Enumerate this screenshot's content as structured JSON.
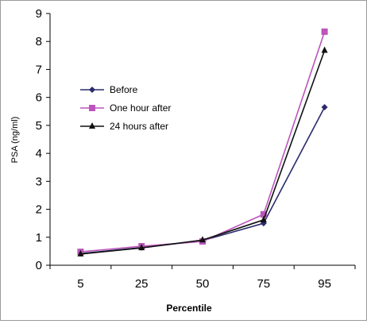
{
  "chart_data": {
    "type": "line",
    "title": "",
    "xlabel": "Percentile",
    "ylabel": "PSA (ng/ml)",
    "categories": [
      "5",
      "25",
      "50",
      "75",
      "95"
    ],
    "ylim": [
      0,
      9
    ],
    "yticks": [
      "0",
      "1",
      "2",
      "3",
      "4",
      "5",
      "6",
      "7",
      "8",
      "9"
    ],
    "grid": false,
    "legend_position": "left-middle",
    "series": [
      {
        "name": "Before",
        "values": [
          0.42,
          0.63,
          0.88,
          1.5,
          5.65
        ],
        "color": "#2b2b6b",
        "marker": "diamond"
      },
      {
        "name": "One hour after",
        "values": [
          0.48,
          0.68,
          0.85,
          1.82,
          8.35
        ],
        "color": "#bb55bb",
        "marker": "square"
      },
      {
        "name": "24 hours after",
        "values": [
          0.4,
          0.62,
          0.9,
          1.62,
          7.68
        ],
        "color": "#111111",
        "marker": "triangle"
      }
    ]
  }
}
